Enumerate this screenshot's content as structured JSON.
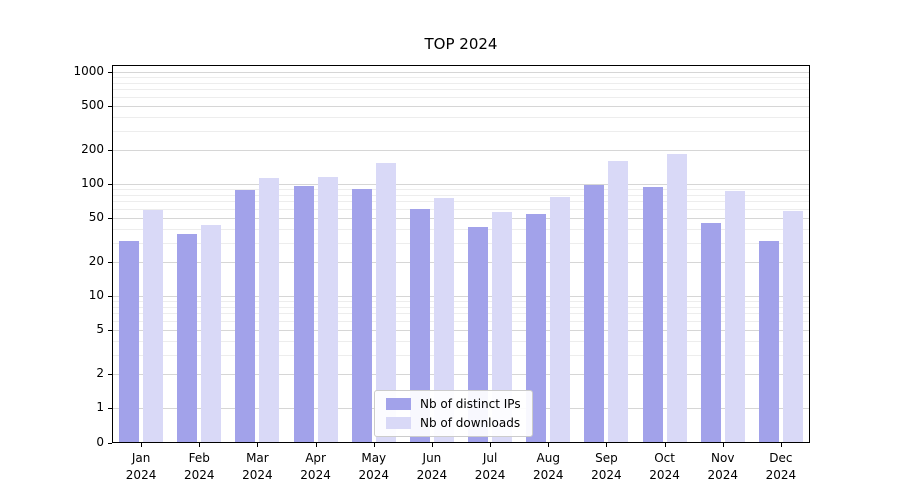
{
  "chart_data": {
    "type": "bar",
    "title": "TOP 2024",
    "categories": [
      "Jan 2024",
      "Feb 2024",
      "Mar 2024",
      "Apr 2024",
      "May 2024",
      "Jun 2024",
      "Jul 2024",
      "Aug 2024",
      "Sep 2024",
      "Oct 2024",
      "Nov 2024",
      "Dec 2024"
    ],
    "series": [
      {
        "name": "Nb of distinct IPs",
        "color": "#a2a2ea",
        "values": [
          31,
          36,
          89,
          95,
          91,
          60,
          41,
          54,
          97,
          94,
          45,
          31
        ]
      },
      {
        "name": "Nb of downloads",
        "color": "#d9d9f7",
        "values": [
          58,
          43,
          112,
          116,
          154,
          75,
          56,
          76,
          160,
          184,
          87,
          57
        ]
      }
    ],
    "yscale": "symlog",
    "yticks": [
      0,
      1,
      2,
      5,
      10,
      20,
      50,
      100,
      200,
      500,
      1000
    ],
    "ylim": [
      0,
      1150
    ],
    "grid": true,
    "legend_position": "lower center"
  }
}
